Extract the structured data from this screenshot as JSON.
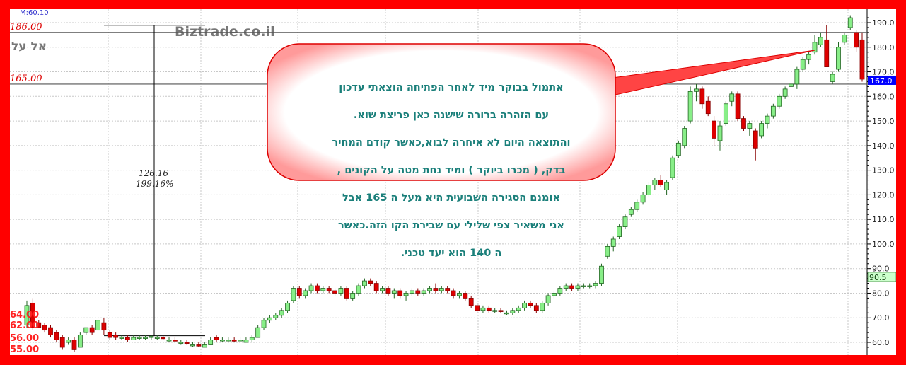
{
  "chart_data": {
    "type": "candlestick",
    "title": "",
    "symbol_label": "אל על",
    "watermark": "Biztrade.co.il",
    "indicator_label": "M:60.10",
    "y_axis": {
      "min": 56,
      "max": 192,
      "ticks": [
        "190.0",
        "180.0",
        "170.0",
        "160.0",
        "150.0",
        "140.0",
        "130.0",
        "120.0",
        "110.0",
        "100.0",
        "90.0",
        "80.0",
        "70.0",
        "60.0"
      ],
      "position": "right"
    },
    "grid": true,
    "last_price_badge": {
      "value": "167.0",
      "color": "#0000ff"
    },
    "ma_badge": {
      "value": "90.5",
      "color": "#ccffcc"
    },
    "horizontal_levels": [
      {
        "value": 186,
        "label": "186.00"
      },
      {
        "value": 165,
        "label": "165.00"
      }
    ],
    "left_price_labels": [
      "64.00",
      "62.00",
      "56.00",
      "55.00"
    ],
    "measure": {
      "from": 62.7,
      "to": 188.9,
      "change": "126.16",
      "percent": "199.16%"
    },
    "colors": {
      "up": "#88ee88",
      "down": "#dd0000",
      "border": "#ff0000",
      "annotation": "#1a7f7a",
      "level_label": "#dd0000"
    },
    "candles_ohlc": [
      [
        67,
        77,
        66,
        75
      ],
      [
        76,
        78,
        65,
        66
      ],
      [
        68,
        69,
        66,
        66
      ],
      [
        67,
        68,
        64,
        65
      ],
      [
        66,
        67,
        62,
        63
      ],
      [
        64,
        65,
        60,
        61
      ],
      [
        62,
        63,
        57,
        58
      ],
      [
        60,
        62,
        59,
        61
      ],
      [
        61,
        62,
        56,
        57
      ],
      [
        58,
        64,
        58,
        63
      ],
      [
        64,
        66,
        63,
        66
      ],
      [
        66,
        67,
        63,
        64
      ],
      [
        65,
        70,
        65,
        69
      ],
      [
        68,
        70,
        63,
        65
      ],
      [
        64,
        65,
        61,
        62
      ],
      [
        63,
        64,
        61,
        62
      ],
      [
        62,
        63,
        61,
        62
      ],
      [
        62,
        63,
        60,
        61
      ],
      [
        61,
        63,
        61,
        62
      ],
      [
        62,
        63,
        61,
        62
      ],
      [
        62,
        63,
        61,
        62
      ],
      [
        62,
        63,
        61,
        62.5
      ],
      [
        62,
        63,
        61,
        62
      ],
      [
        62,
        63,
        61,
        61.5
      ],
      [
        61,
        62,
        60,
        61
      ],
      [
        61,
        62,
        60,
        60.5
      ],
      [
        60,
        61,
        59,
        60
      ],
      [
        60,
        61,
        59,
        59.5
      ],
      [
        59,
        60,
        58,
        59
      ],
      [
        59,
        60,
        58,
        58.5
      ],
      [
        58,
        60,
        58,
        59
      ],
      [
        59,
        62,
        59,
        61
      ],
      [
        62,
        63,
        60,
        61
      ],
      [
        61,
        62,
        60,
        61
      ],
      [
        61,
        62,
        60,
        61
      ],
      [
        61,
        62,
        60,
        60.5
      ],
      [
        61,
        62,
        60,
        61
      ],
      [
        60,
        62,
        60,
        61
      ],
      [
        61,
        63,
        60,
        62
      ],
      [
        62,
        67,
        62,
        66
      ],
      [
        66,
        70,
        65,
        69
      ],
      [
        69,
        71,
        68,
        70
      ],
      [
        70,
        72,
        69,
        71
      ],
      [
        71,
        74,
        70,
        73
      ],
      [
        73,
        77,
        72,
        76
      ],
      [
        77,
        83,
        76,
        82
      ],
      [
        82,
        83,
        78,
        79
      ],
      [
        79,
        82,
        78,
        81
      ],
      [
        81,
        84,
        80,
        83
      ],
      [
        83,
        84,
        80,
        81
      ],
      [
        81,
        83,
        80,
        82
      ],
      [
        82,
        83,
        80,
        81
      ],
      [
        81,
        82,
        79,
        80
      ],
      [
        80,
        83,
        79,
        82
      ],
      [
        82,
        83,
        77,
        78
      ],
      [
        78,
        81,
        77,
        80
      ],
      [
        80,
        84,
        79,
        83
      ],
      [
        83,
        86,
        82,
        85
      ],
      [
        85,
        86,
        83,
        84
      ],
      [
        84,
        85,
        80,
        81
      ],
      [
        81,
        83,
        80,
        82
      ],
      [
        82,
        83,
        79,
        80
      ],
      [
        80,
        82,
        78,
        81
      ],
      [
        81,
        82,
        78,
        79
      ],
      [
        79,
        81,
        77,
        80
      ],
      [
        80,
        82,
        79,
        81
      ],
      [
        81,
        82,
        79,
        80
      ],
      [
        80,
        82,
        79,
        81
      ],
      [
        81,
        83,
        80,
        82
      ],
      [
        82,
        84,
        80,
        81
      ],
      [
        81,
        83,
        80,
        82
      ],
      [
        82,
        83,
        80,
        81
      ],
      [
        81,
        82,
        78,
        79
      ],
      [
        79,
        81,
        78,
        80
      ],
      [
        80,
        81,
        77,
        78
      ],
      [
        78,
        79,
        74,
        75
      ],
      [
        75,
        76,
        72,
        73
      ],
      [
        73,
        75,
        72,
        74
      ],
      [
        74,
        75,
        72,
        73
      ],
      [
        73,
        74,
        72,
        73
      ],
      [
        73,
        74,
        72,
        72.5
      ],
      [
        72,
        73,
        71,
        72
      ],
      [
        72,
        74,
        71,
        73
      ],
      [
        73,
        75,
        72,
        74
      ],
      [
        74,
        77,
        73,
        76
      ],
      [
        76,
        77,
        74,
        75
      ],
      [
        75,
        76,
        72,
        73
      ],
      [
        73,
        77,
        72,
        76
      ],
      [
        76,
        80,
        75,
        79
      ],
      [
        79,
        81,
        78,
        80
      ],
      [
        80,
        83,
        79,
        82
      ],
      [
        82,
        84,
        81,
        83
      ],
      [
        83,
        84,
        81,
        82
      ],
      [
        82,
        84,
        81,
        83
      ],
      [
        83,
        84,
        82,
        83
      ],
      [
        83,
        84,
        82,
        83
      ],
      [
        83,
        85,
        82,
        84
      ],
      [
        84,
        92,
        83,
        91
      ],
      [
        95,
        100,
        94,
        99
      ],
      [
        99,
        103,
        97,
        102
      ],
      [
        103,
        108,
        102,
        107
      ],
      [
        107,
        112,
        106,
        111
      ],
      [
        112,
        115,
        111,
        114
      ],
      [
        114,
        118,
        113,
        117
      ],
      [
        117,
        121,
        116,
        120
      ],
      [
        120,
        125,
        119,
        124
      ],
      [
        124,
        127,
        122,
        126
      ],
      [
        126,
        128,
        123,
        124
      ],
      [
        122,
        126,
        120,
        125
      ],
      [
        127,
        136,
        126,
        135
      ],
      [
        136,
        142,
        135,
        141
      ],
      [
        140,
        148,
        139,
        147
      ],
      [
        150,
        164,
        149,
        162
      ],
      [
        162,
        165,
        158,
        163
      ],
      [
        163,
        164,
        155,
        157
      ],
      [
        158,
        160,
        152,
        153
      ],
      [
        150,
        152,
        140,
        143
      ],
      [
        142,
        150,
        138,
        148
      ],
      [
        149,
        158,
        148,
        157
      ],
      [
        158,
        162,
        156,
        161
      ],
      [
        161,
        162,
        150,
        151
      ],
      [
        151,
        152,
        146,
        147
      ],
      [
        147,
        150,
        144,
        149
      ],
      [
        146,
        147,
        134,
        139
      ],
      [
        144,
        150,
        143,
        149
      ],
      [
        149,
        153,
        147,
        152
      ],
      [
        152,
        157,
        151,
        156
      ],
      [
        156,
        161,
        155,
        160
      ],
      [
        160,
        164,
        159,
        163
      ],
      [
        164,
        165,
        160,
        165
      ],
      [
        165,
        172,
        163,
        171
      ],
      [
        171,
        176,
        170,
        175
      ],
      [
        175,
        178,
        173,
        177
      ],
      [
        178,
        185,
        177,
        182
      ],
      [
        181,
        186,
        180,
        184
      ],
      [
        183,
        189,
        172,
        172
      ],
      [
        166,
        170,
        165,
        169
      ],
      [
        171,
        182,
        170,
        180
      ],
      [
        182,
        186,
        181,
        185
      ],
      [
        188,
        193,
        187,
        192
      ],
      [
        186,
        187,
        178,
        180
      ],
      [
        183,
        186,
        166,
        167
      ]
    ]
  },
  "annotation": {
    "lines": [
      "אתמול בבוקר  מיד  לאחר  הפתיחה   הוצאתי עדכון",
      "עם  הזהרה  ברורה  שישנה כאן  פריצת שוא.",
      "והתוצאה  היום  לא  איחרה  לבוא,כאשר  קודם  המחיר",
      "בדק, (  מכרו  ביוקר )  ומיד  נחת מטה  על הקונים ,",
      "אומנם  הסגירה  השבועית  היא  מעל ה 165  אבל",
      "אני   משאיר  צפי  שלילי  עם  שבירת  הקו   הזה.כאשר",
      "ה  140  הוא  יעד  טכני."
    ]
  }
}
